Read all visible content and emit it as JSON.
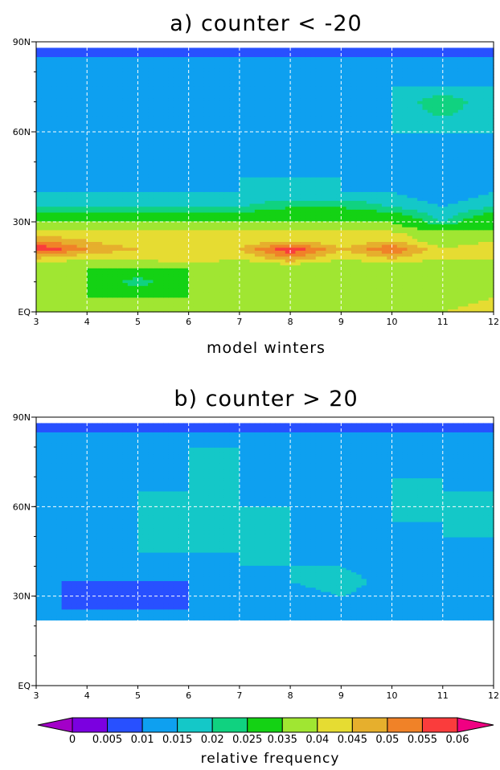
{
  "colors": {
    "levels": [
      "#a300c8",
      "#7b00e0",
      "#2850ff",
      "#0ea0f0",
      "#14c8c8",
      "#10d280",
      "#14d214",
      "#a0e632",
      "#e6dc32",
      "#e6af2d",
      "#f08228",
      "#fa3c3c",
      "#f00082"
    ]
  },
  "colorbar": {
    "labels": [
      "0",
      "0.005",
      "0.01",
      "0.015",
      "0.02",
      "0.025",
      "0.035",
      "0.04",
      "0.045",
      "0.05",
      "0.055",
      "0.06"
    ],
    "title": "relative frequency"
  },
  "chart_data": [
    {
      "type": "heatmap",
      "title": "a) counter < -20",
      "xlabel": "model winters",
      "ylabel": "",
      "x_ticks": [
        "3",
        "4",
        "5",
        "6",
        "7",
        "8",
        "9",
        "10",
        "11",
        "12"
      ],
      "y_ticks": [
        "EQ",
        "30N",
        "60N",
        "90N"
      ],
      "xlim": [
        3,
        12
      ],
      "ylim": [
        0,
        90
      ],
      "grid": true,
      "x": [
        3,
        4,
        5,
        6,
        7,
        8,
        9,
        10,
        11,
        12
      ],
      "y": [
        0,
        5,
        10,
        15,
        18,
        21,
        24,
        27,
        30,
        35,
        40,
        45,
        50,
        55,
        60,
        65,
        70,
        75,
        80,
        85,
        88
      ],
      "values": [
        [
          0.04,
          0.04,
          0.04,
          0.04,
          0.04,
          0.04,
          0.04,
          0.04,
          0.04,
          0.045
        ],
        [
          0.04,
          0.035,
          0.035,
          0.035,
          0.035,
          0.035,
          0.035,
          0.035,
          0.035,
          0.04
        ],
        [
          0.035,
          0.035,
          0.02,
          0.035,
          0.035,
          0.035,
          0.035,
          0.035,
          0.035,
          0.035
        ],
        [
          0.035,
          0.035,
          0.035,
          0.035,
          0.035,
          0.035,
          0.035,
          0.035,
          0.035,
          0.035
        ],
        [
          0.045,
          0.04,
          0.04,
          0.045,
          0.04,
          0.05,
          0.04,
          0.045,
          0.04,
          0.04
        ],
        [
          0.06,
          0.05,
          0.045,
          0.045,
          0.045,
          0.06,
          0.045,
          0.055,
          0.04,
          0.045
        ],
        [
          0.05,
          0.045,
          0.04,
          0.04,
          0.04,
          0.045,
          0.04,
          0.045,
          0.035,
          0.04
        ],
        [
          0.04,
          0.04,
          0.04,
          0.04,
          0.04,
          0.04,
          0.04,
          0.04,
          0.035,
          0.035
        ],
        [
          0.035,
          0.035,
          0.035,
          0.035,
          0.035,
          0.035,
          0.035,
          0.035,
          0.02,
          0.035
        ],
        [
          0.02,
          0.02,
          0.02,
          0.02,
          0.02,
          0.025,
          0.025,
          0.02,
          0.015,
          0.02
        ],
        [
          0.015,
          0.015,
          0.015,
          0.015,
          0.015,
          0.015,
          0.015,
          0.015,
          0.01,
          0.015
        ],
        [
          0.01,
          0.015,
          0.01,
          0.01,
          0.015,
          0.015,
          0.015,
          0.01,
          0.01,
          0.01
        ],
        [
          0.01,
          0.015,
          0.01,
          0.01,
          0.01,
          0.015,
          0.01,
          0.01,
          0.01,
          0.01
        ],
        [
          0.01,
          0.015,
          0.015,
          0.01,
          0.01,
          0.01,
          0.01,
          0.01,
          0.015,
          0.01
        ],
        [
          0.01,
          0.01,
          0.01,
          0.01,
          0.01,
          0.015,
          0.01,
          0.015,
          0.015,
          0.015
        ],
        [
          0.01,
          0.01,
          0.01,
          0.01,
          0.01,
          0.015,
          0.01,
          0.015,
          0.02,
          0.015
        ],
        [
          0.015,
          0.01,
          0.01,
          0.01,
          0.01,
          0.015,
          0.015,
          0.015,
          0.025,
          0.015
        ],
        [
          0.01,
          0.015,
          0.015,
          0.015,
          0.01,
          0.015,
          0.01,
          0.015,
          0.015,
          0.015
        ],
        [
          0.01,
          0.01,
          0.01,
          0.01,
          0.01,
          0.01,
          0.01,
          0.01,
          0.01,
          0.01
        ],
        [
          0.01,
          0.01,
          0.01,
          0.01,
          0.01,
          0.01,
          0.01,
          0.01,
          0.01,
          0.01
        ],
        [
          0.005,
          0.005,
          0.005,
          0.005,
          0.005,
          0.005,
          0.005,
          0.005,
          0.005,
          0.005
        ]
      ]
    },
    {
      "type": "heatmap",
      "title": "b) counter > 20",
      "xlabel": "",
      "ylabel": "",
      "x_ticks": [
        "3",
        "4",
        "5",
        "6",
        "7",
        "8",
        "9",
        "10",
        "11",
        "12"
      ],
      "y_ticks": [
        "EQ",
        "30N",
        "60N",
        "90N"
      ],
      "xlim": [
        3,
        12
      ],
      "ylim": [
        0,
        90
      ],
      "grid": true,
      "data_ylim": [
        22,
        88
      ],
      "x": [
        3,
        4,
        5,
        6,
        7,
        8,
        9,
        10,
        11,
        12
      ],
      "y": [
        22,
        26,
        30,
        35,
        40,
        45,
        50,
        55,
        60,
        65,
        70,
        75,
        80,
        85,
        88
      ],
      "values": [
        [
          0.01,
          0.01,
          0.01,
          0.01,
          0.01,
          0.01,
          0.01,
          0.01,
          0.01,
          0.01
        ],
        [
          0.01,
          0.01,
          0.01,
          0.01,
          0.01,
          0.01,
          0.01,
          0.01,
          0.01,
          0.01
        ],
        [
          0.015,
          0.005,
          0.005,
          0.01,
          0.01,
          0.01,
          0.015,
          0.01,
          0.01,
          0.01
        ],
        [
          0.01,
          0.01,
          0.01,
          0.01,
          0.01,
          0.015,
          0.02,
          0.01,
          0.01,
          0.01
        ],
        [
          0.01,
          0.01,
          0.01,
          0.01,
          0.015,
          0.015,
          0.015,
          0.01,
          0.01,
          0.01
        ],
        [
          0.01,
          0.01,
          0.015,
          0.015,
          0.015,
          0.015,
          0.01,
          0.01,
          0.01,
          0.01
        ],
        [
          0.01,
          0.01,
          0.015,
          0.015,
          0.02,
          0.015,
          0.01,
          0.01,
          0.015,
          0.015
        ],
        [
          0.015,
          0.01,
          0.015,
          0.015,
          0.015,
          0.015,
          0.01,
          0.015,
          0.015,
          0.015
        ],
        [
          0.015,
          0.01,
          0.015,
          0.02,
          0.015,
          0.015,
          0.01,
          0.015,
          0.02,
          0.015
        ],
        [
          0.015,
          0.01,
          0.015,
          0.015,
          0.015,
          0.01,
          0.01,
          0.015,
          0.015,
          0.015
        ],
        [
          0.01,
          0.01,
          0.01,
          0.015,
          0.015,
          0.01,
          0.01,
          0.015,
          0.015,
          0.01
        ],
        [
          0.01,
          0.01,
          0.01,
          0.015,
          0.015,
          0.01,
          0.01,
          0.01,
          0.015,
          0.01
        ],
        [
          0.01,
          0.01,
          0.015,
          0.015,
          0.015,
          0.01,
          0.01,
          0.01,
          0.01,
          0.01
        ],
        [
          0.01,
          0.01,
          0.01,
          0.01,
          0.01,
          0.01,
          0.01,
          0.01,
          0.01,
          0.01
        ],
        [
          0.005,
          0.005,
          0.005,
          0.005,
          0.005,
          0.005,
          0.005,
          0.005,
          0.005,
          0.005
        ]
      ]
    }
  ]
}
